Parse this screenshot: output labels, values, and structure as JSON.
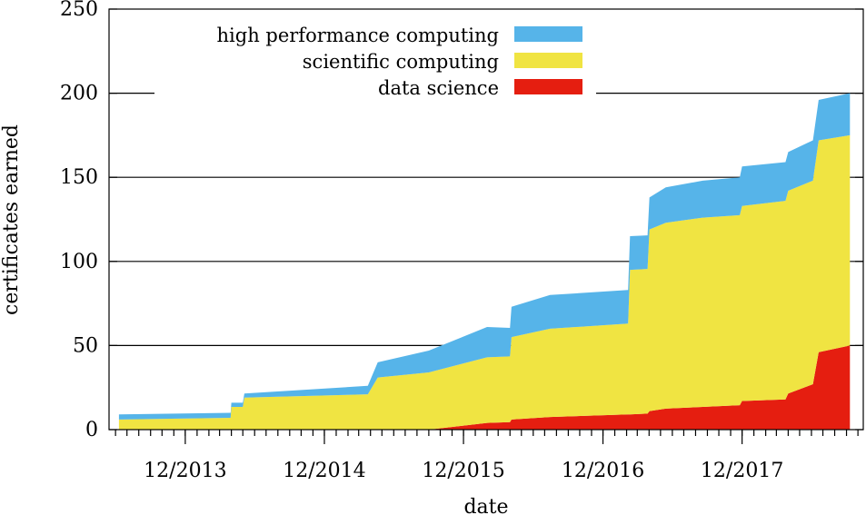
{
  "chart_data": {
    "type": "area",
    "stacked": true,
    "xlabel": "date",
    "ylabel": "certificates earned",
    "ylim": [
      0,
      250
    ],
    "yticks": [
      0,
      50,
      100,
      150,
      200,
      250
    ],
    "xlim": [
      "2013-05-15",
      "2018-10-15"
    ],
    "xticks": [
      {
        "date": "2013-12-01",
        "label": "12/2013"
      },
      {
        "date": "2014-12-01",
        "label": "12/2014"
      },
      {
        "date": "2015-12-01",
        "label": "12/2015"
      },
      {
        "date": "2016-12-01",
        "label": "12/2016"
      },
      {
        "date": "2017-12-01",
        "label": "12/2017"
      }
    ],
    "grid": "horizontal",
    "legend_position": "top-left",
    "x": [
      "2013-06-10",
      "2014-03-30",
      "2014-04-01",
      "2014-05-01",
      "2014-05-05",
      "2015-03-25",
      "2015-04-20",
      "2015-09-01",
      "2016-02-01",
      "2016-04-01",
      "2016-04-05",
      "2016-07-15",
      "2017-02-05",
      "2017-02-10",
      "2017-03-28",
      "2017-04-02",
      "2017-05-15",
      "2017-08-20",
      "2017-11-25",
      "2017-12-01",
      "2018-03-25",
      "2018-04-01",
      "2018-06-05",
      "2018-06-20",
      "2018-09-10"
    ],
    "series": [
      {
        "name": "data science",
        "color": "#e51e10",
        "values": [
          0,
          0,
          0,
          0,
          0,
          0,
          0,
          0,
          4,
          4.5,
          6,
          7.5,
          9,
          9,
          9.5,
          11,
          12.5,
          13.5,
          14.5,
          17,
          18,
          21.5,
          27,
          46,
          50
        ]
      },
      {
        "name": "scientific computing",
        "color": "#f0e442",
        "values": [
          6,
          7,
          13.5,
          13.5,
          19,
          21,
          31,
          34,
          39,
          39,
          49,
          52.5,
          54,
          86,
          86,
          108,
          110.5,
          112.5,
          113,
          116,
          118,
          120.5,
          121,
          126,
          125
        ]
      },
      {
        "name": "high performance computing",
        "color": "#56b4e9",
        "values": [
          3,
          3,
          2.5,
          2.5,
          2.5,
          5,
          9,
          13,
          18,
          17,
          18,
          20,
          20,
          20,
          20,
          19,
          21,
          22,
          22.5,
          23.5,
          23,
          23,
          24,
          24,
          25
        ]
      }
    ]
  }
}
